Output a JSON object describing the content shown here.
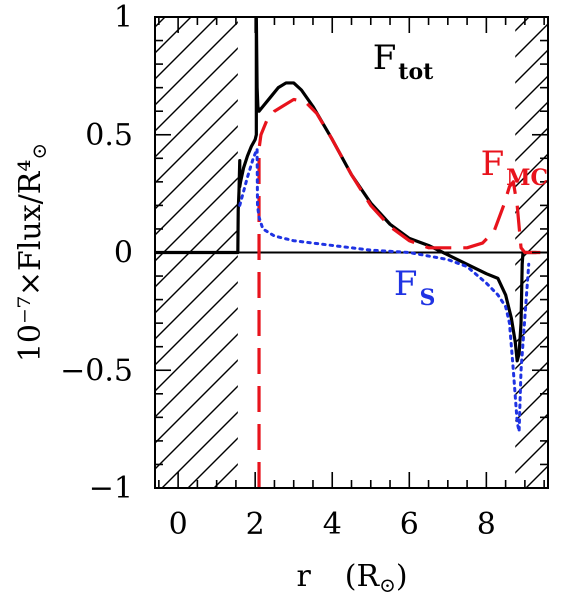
{
  "chart_data": {
    "type": "line",
    "xlabel_main": "r",
    "xlabel_unit": "(R",
    "xlabel_unit_close": ")",
    "ylabel": "10⁻⁷×Flux/R⁴",
    "xlim": [
      -0.6,
      9.6
    ],
    "ylim": [
      -1,
      1
    ],
    "x_ticks": [
      {
        "value": 0,
        "label": "0"
      },
      {
        "value": 2,
        "label": "2"
      },
      {
        "value": 4,
        "label": "4"
      },
      {
        "value": 6,
        "label": "6"
      },
      {
        "value": 8,
        "label": "8"
      }
    ],
    "y_ticks": [
      {
        "value": 1,
        "label": "1"
      },
      {
        "value": 0.5,
        "label": "0.5"
      },
      {
        "value": 0,
        "label": "0"
      },
      {
        "value": -0.5,
        "label": "−0.5"
      },
      {
        "value": -1,
        "label": "−1"
      }
    ],
    "hatched_regions": [
      [
        -0.6,
        1.55
      ],
      [
        8.75,
        9.6
      ]
    ],
    "series": [
      {
        "key": "F_tot",
        "label_main": "F",
        "label_sub": "tot",
        "label_at": [
          5.05,
          0.78
        ],
        "color": "#000000",
        "style": "solid",
        "x": [
          -0.6,
          1.55,
          1.56,
          1.58,
          1.6,
          1.6,
          1.62,
          1.7,
          1.8,
          1.9,
          2.0,
          2.03,
          2.03,
          2.05,
          2.07,
          2.1,
          2.2,
          2.4,
          2.6,
          2.8,
          3.0,
          3.2,
          3.5,
          4.0,
          4.5,
          5.0,
          5.5,
          6.0,
          6.5,
          7.0,
          7.5,
          8.0,
          8.3,
          8.5,
          8.65,
          8.75,
          8.8,
          8.85,
          8.9,
          8.93,
          8.95,
          9.1,
          9.3
        ],
        "y": [
          0.0,
          0.0,
          0.18,
          0.26,
          0.39,
          0.28,
          0.3,
          0.36,
          0.41,
          0.45,
          0.48,
          0.5,
          1.0,
          0.7,
          0.62,
          0.6,
          0.62,
          0.66,
          0.7,
          0.72,
          0.72,
          0.69,
          0.62,
          0.48,
          0.33,
          0.21,
          0.12,
          0.06,
          0.03,
          -0.01,
          -0.05,
          -0.09,
          -0.11,
          -0.18,
          -0.28,
          -0.38,
          -0.46,
          -0.43,
          -0.3,
          -0.05,
          0.0,
          0.0,
          0.0
        ]
      },
      {
        "key": "F_MC",
        "label_main": "F",
        "label_sub": "MC",
        "label_at": [
          7.85,
          0.33
        ],
        "color": "#e8131c",
        "style": "dashed",
        "x": [
          2.1,
          2.1,
          2.15,
          2.3,
          2.5,
          2.7,
          3.0,
          3.3,
          3.6,
          4.0,
          4.5,
          5.0,
          5.5,
          6.0,
          6.5,
          7.0,
          7.5,
          7.9,
          8.2,
          8.45,
          8.6,
          8.7,
          8.8,
          8.9,
          9.0,
          9.2,
          9.4
        ],
        "y": [
          -1.0,
          0.44,
          0.5,
          0.56,
          0.6,
          0.62,
          0.65,
          0.64,
          0.59,
          0.48,
          0.33,
          0.2,
          0.11,
          0.05,
          0.02,
          0.02,
          0.02,
          0.04,
          0.09,
          0.2,
          0.28,
          0.3,
          0.2,
          0.02,
          0.0,
          0.0,
          0.0
        ]
      },
      {
        "key": "F_S",
        "label_main": "F",
        "label_sub": "S",
        "label_at": [
          5.6,
          -0.18
        ],
        "color": "#1f33e3",
        "style": "dotted",
        "x": [
          1.6,
          1.8,
          1.95,
          2.05,
          2.06,
          2.1,
          2.2,
          2.5,
          3.0,
          4.0,
          5.0,
          6.0,
          7.0,
          7.5,
          8.0,
          8.3,
          8.5,
          8.6,
          8.7,
          8.8,
          8.85,
          8.9,
          9.1
        ],
        "y": [
          0.2,
          0.32,
          0.4,
          0.44,
          0.2,
          0.15,
          0.1,
          0.07,
          0.05,
          0.03,
          0.01,
          0.0,
          -0.03,
          -0.06,
          -0.13,
          -0.18,
          -0.23,
          -0.3,
          -0.5,
          -0.72,
          -0.76,
          -0.5,
          -0.05
        ]
      }
    ]
  }
}
